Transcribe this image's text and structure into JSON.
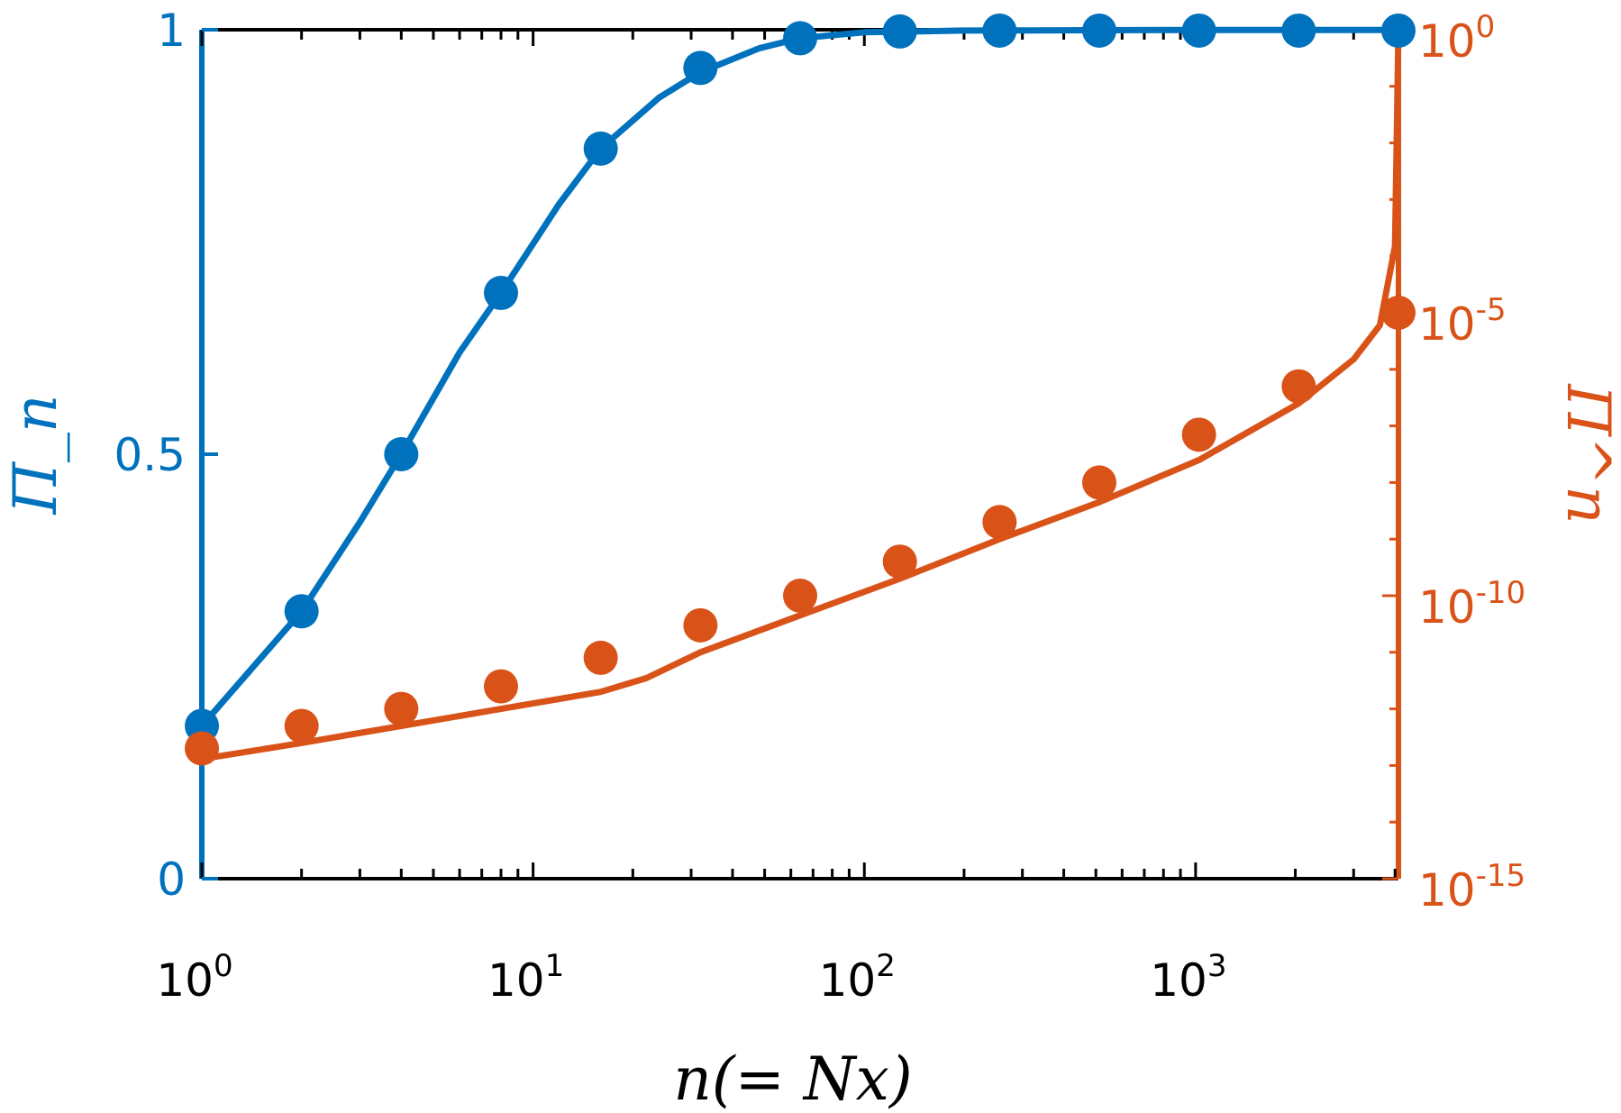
{
  "chart_data": {
    "type": "scatter",
    "title": "",
    "xlabel": "n(= Nx)",
    "ylabel_left": "Π_n",
    "ylabel_right": "Π^n",
    "x_scale": "log",
    "x_lim": [
      1,
      4096
    ],
    "x_ticks": [
      {
        "value": 1,
        "mantissa": "10",
        "exponent": "0"
      },
      {
        "value": 10,
        "mantissa": "10",
        "exponent": "1"
      },
      {
        "value": 100,
        "mantissa": "10",
        "exponent": "2"
      },
      {
        "value": 1000,
        "mantissa": "10",
        "exponent": "3"
      }
    ],
    "y_left": {
      "scale": "linear",
      "lim": [
        0,
        1
      ],
      "ticks": [
        {
          "value": 0,
          "label": "0"
        },
        {
          "value": 0.5,
          "label": "0.5"
        },
        {
          "value": 1,
          "label": "1"
        }
      ],
      "color": "#0072BD"
    },
    "y_right": {
      "scale": "log",
      "lim": [
        1e-15,
        1
      ],
      "ticks": [
        {
          "value": 1,
          "mantissa": "10",
          "exponent": "0"
        },
        {
          "value": 1e-05,
          "mantissa": "10",
          "exponent": "-5"
        },
        {
          "value": 1e-10,
          "mantissa": "10",
          "exponent": "-10"
        },
        {
          "value": 1e-15,
          "mantissa": "10",
          "exponent": "-15"
        }
      ],
      "color": "#D95319"
    },
    "grid": false,
    "legend": "none",
    "series": [
      {
        "axis": "left",
        "style": "markers",
        "color": "#0072BD",
        "x": [
          1,
          2,
          4,
          8,
          16,
          32,
          64,
          128,
          256,
          512,
          1024,
          2048,
          4096
        ],
        "y": [
          0.18,
          0.315,
          0.5,
          0.69,
          0.86,
          0.955,
          0.99,
          0.998,
          0.999,
          0.999,
          0.999,
          0.999,
          0.999
        ]
      },
      {
        "axis": "left",
        "style": "line",
        "color": "#0072BD",
        "x": [
          1,
          2,
          3,
          4,
          6,
          8,
          12,
          16,
          24,
          32,
          48,
          64,
          100,
          200,
          500,
          1000,
          4096
        ],
        "y": [
          0.18,
          0.315,
          0.42,
          0.5,
          0.62,
          0.69,
          0.795,
          0.86,
          0.92,
          0.95,
          0.978,
          0.99,
          0.997,
          0.999,
          0.9995,
          0.9997,
          0.9997
        ]
      },
      {
        "axis": "right",
        "style": "markers",
        "color": "#D95319",
        "x": [
          1,
          2,
          4,
          8,
          16,
          32,
          64,
          128,
          256,
          512,
          1024,
          2048,
          4096
        ],
        "y": [
          2e-13,
          5e-13,
          1e-12,
          2.5e-12,
          8e-12,
          3e-11,
          1e-10,
          4e-10,
          2e-09,
          1e-08,
          7e-08,
          5e-07,
          1e-05
        ]
      },
      {
        "axis": "right",
        "style": "line",
        "color": "#D95319",
        "x": [
          1,
          2,
          4,
          8,
          16,
          22,
          32,
          64,
          128,
          256,
          512,
          1024,
          2048,
          3000,
          3600,
          4000,
          4096
        ],
        "y": [
          1.3e-13,
          2.5e-13,
          5e-13,
          1e-12,
          2e-12,
          3.5e-12,
          1e-11,
          4.5e-11,
          2e-10,
          1e-09,
          4.5e-09,
          2.5e-08,
          2.5e-07,
          1.5e-06,
          6e-06,
          0.00015,
          1
        ]
      }
    ]
  }
}
